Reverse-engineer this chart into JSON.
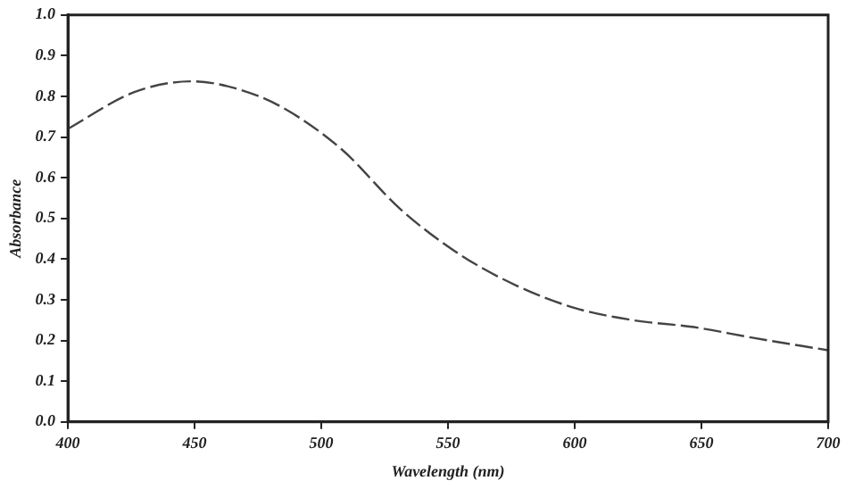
{
  "chart_data": {
    "type": "line",
    "xlabel": "Wavelength (nm)",
    "ylabel": "Absorbance",
    "x": [
      400,
      426,
      449,
      466,
      484,
      508,
      531,
      554,
      577,
      600,
      623,
      647,
      670,
      700
    ],
    "series": [
      {
        "color": "#444444",
        "values": [
          0.72,
          0.81,
          0.837,
          0.82,
          0.775,
          0.67,
          0.524,
          0.414,
          0.335,
          0.28,
          0.25,
          0.233,
          0.207,
          0.176
        ]
      }
    ],
    "xlim": [
      400,
      700
    ],
    "xticks": [
      400,
      450,
      500,
      550,
      600,
      650,
      700
    ],
    "ylim": [
      0,
      1
    ],
    "yticks": [
      {
        "value": 0,
        "label": "0.0"
      },
      0.1,
      0.2,
      0.3,
      0.4,
      0.5,
      0.6,
      0.7,
      0.8,
      0.9,
      {
        "value": 1,
        "label": "1.0"
      }
    ],
    "grid": false,
    "legend": false,
    "line_style": "dashed",
    "marker": "none"
  }
}
